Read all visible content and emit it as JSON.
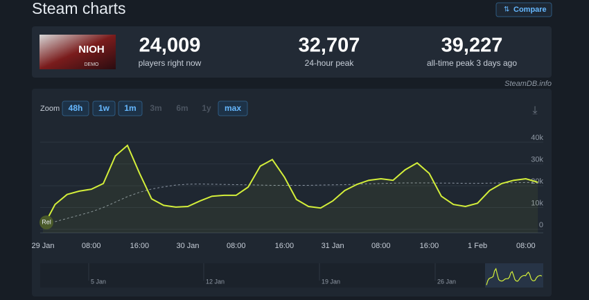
{
  "header": {
    "title": "Steam charts",
    "compare": "Compare"
  },
  "game": {
    "logo": "NIOH",
    "badge": "DEMO"
  },
  "stats": [
    {
      "value": "24,009",
      "label": "players right now"
    },
    {
      "value": "32,707",
      "label": "24-hour peak"
    },
    {
      "value": "39,227",
      "label": "all-time peak 3 days ago"
    }
  ],
  "credit": "SteamDB.info",
  "zoom": {
    "label": "Zoom",
    "buttons": [
      "48h",
      "1w",
      "1m",
      "3m",
      "6m",
      "1y",
      "max"
    ]
  },
  "marker": "Rel",
  "navigator": [
    "5 Jan",
    "12 Jan",
    "19 Jan",
    "26 Jan"
  ],
  "chart_data": {
    "type": "line",
    "categories": [
      "29 Jan",
      null,
      null,
      null,
      "08:00",
      null,
      null,
      null,
      "16:00",
      null,
      null,
      null,
      "30 Jan",
      null,
      null,
      null,
      "08:00",
      null,
      null,
      null,
      "16:00",
      null,
      null,
      null,
      "31 Jan",
      null,
      null,
      null,
      "08:00",
      null,
      null,
      null,
      "16:00",
      null,
      null,
      null,
      "1 Feb",
      null,
      null,
      null,
      "08:00",
      null
    ],
    "series": [
      {
        "color": "#d4ef3a",
        "values": [
          1000,
          11400,
          16000,
          17500,
          18400,
          21000,
          33700,
          38500,
          25700,
          14000,
          11000,
          10200,
          10500,
          13000,
          15200,
          15600,
          15600,
          19400,
          29000,
          32000,
          24000,
          13700,
          10500,
          9800,
          13000,
          17800,
          20600,
          22500,
          23200,
          22500,
          27300,
          30500,
          25700,
          15200,
          11400,
          10500,
          12000,
          17800,
          21000,
          22500,
          23200,
          21600
        ]
      },
      {
        "color": "#8b95a3",
        "values": [
          2000,
          3500,
          5000,
          6500,
          8000,
          10000,
          12500,
          15000,
          17000,
          18500,
          19500,
          20300,
          20700,
          20800,
          20700,
          20600,
          20500,
          20400,
          20300,
          20200,
          20200,
          20200,
          20200,
          20300,
          20400,
          20500,
          20700,
          20900,
          21000,
          21200,
          21300,
          21300,
          21300,
          21200,
          21200,
          21100,
          21100,
          21200,
          21300,
          21400,
          21500,
          21600
        ]
      }
    ],
    "ylim": [
      0,
      48000
    ],
    "yticks": [
      {
        "value": 0,
        "label": "0"
      },
      {
        "value": 10000,
        "label": "10k"
      },
      {
        "value": 20000,
        "label": "20k"
      },
      {
        "value": 30000,
        "label": "30k"
      },
      {
        "value": 40000,
        "label": "40k"
      }
    ],
    "grid": true
  }
}
